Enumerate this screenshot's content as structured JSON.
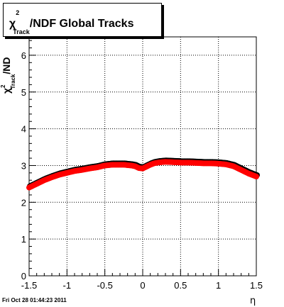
{
  "chart_data": {
    "type": "scatter",
    "title": "χ²Track/NDF  Global Tracks",
    "title_parts": {
      "symbol": "χ",
      "sup": "2",
      "sub": "Track",
      "rest": "/NDF  Global Tracks"
    },
    "xlabel": "η",
    "ylabel": "χ²Track/NDF",
    "ylabel_parts": {
      "symbol": "χ",
      "sup": "2",
      "sub": "Track",
      "rest": "/ND"
    },
    "xlim": [
      -1.5,
      1.5
    ],
    "ylim": [
      0,
      6.5
    ],
    "xticks": [
      -1.5,
      -1,
      -0.5,
      0,
      0.5,
      1,
      1.5
    ],
    "xtick_labels": [
      "-1.5",
      "-1",
      "-0.5",
      "0",
      "0.5",
      "1",
      "1.5"
    ],
    "yticks": [
      0,
      1,
      2,
      3,
      4,
      5,
      6
    ],
    "ytick_labels": [
      "0",
      "1",
      "2",
      "3",
      "4",
      "5",
      "6"
    ],
    "grid": true,
    "series": [
      {
        "color": "#ff0000",
        "edge_color": "#000000",
        "x": [
          -1.5,
          -1.4,
          -1.3,
          -1.2,
          -1.1,
          -1.0,
          -0.9,
          -0.8,
          -0.7,
          -0.6,
          -0.5,
          -0.45,
          -0.4,
          -0.35,
          -0.3,
          -0.25,
          -0.2,
          -0.15,
          -0.1,
          -0.05,
          0.0,
          0.05,
          0.1,
          0.15,
          0.2,
          0.25,
          0.3,
          0.4,
          0.5,
          0.6,
          0.7,
          0.8,
          0.9,
          1.0,
          1.1,
          1.2,
          1.3,
          1.4,
          1.5
        ],
        "y": [
          2.4,
          2.5,
          2.6,
          2.68,
          2.75,
          2.8,
          2.85,
          2.88,
          2.92,
          2.95,
          3.0,
          3.01,
          3.02,
          3.02,
          3.02,
          3.02,
          3.01,
          3.0,
          2.98,
          2.93,
          2.92,
          2.97,
          3.02,
          3.06,
          3.08,
          3.09,
          3.1,
          3.09,
          3.08,
          3.08,
          3.07,
          3.06,
          3.06,
          3.05,
          3.03,
          2.98,
          2.88,
          2.78,
          2.7
        ]
      }
    ]
  },
  "footer": {
    "timestamp": "Fri Oct 28 01:44:23 2011"
  }
}
